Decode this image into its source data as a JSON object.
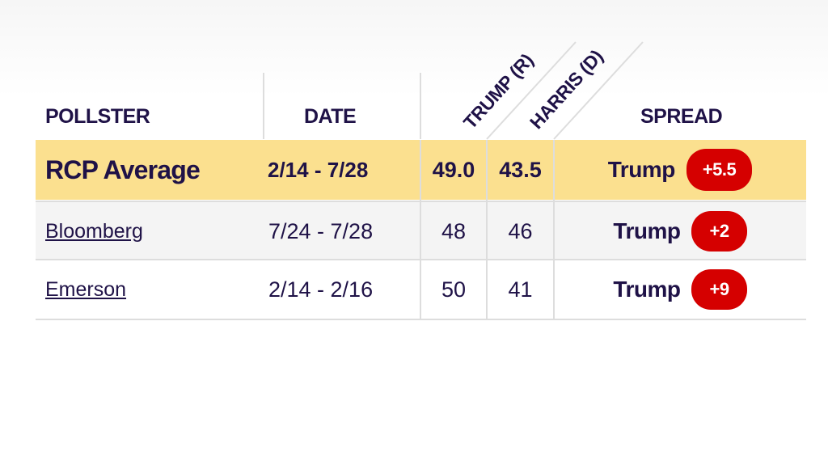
{
  "table": {
    "headers": [
      "POLLSTER",
      "DATE",
      "TRUMP (R)",
      "HARRIS (D)",
      "SPREAD"
    ],
    "average": {
      "pollster": "RCP Average",
      "date": "2/14 - 7/28",
      "trump": "49.0",
      "harris": "43.5",
      "spread_leader": "Trump",
      "spread_value": "+5.5"
    },
    "rows": [
      {
        "pollster": "Bloomberg",
        "date": "7/24 - 7/28",
        "trump": "48",
        "harris": "46",
        "spread_leader": "Trump",
        "spread_value": "+2"
      },
      {
        "pollster": "Emerson",
        "date": "2/14 - 2/16",
        "trump": "50",
        "harris": "41",
        "spread_leader": "Trump",
        "spread_value": "+9"
      }
    ]
  }
}
